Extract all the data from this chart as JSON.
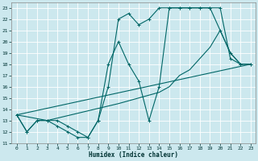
{
  "xlabel": "Humidex (Indice chaleur)",
  "background_color": "#cce8ee",
  "grid_color": "#ffffff",
  "line_color": "#006666",
  "xlim": [
    -0.5,
    23.5
  ],
  "ylim": [
    11,
    23.5
  ],
  "yticks": [
    11,
    12,
    13,
    14,
    15,
    16,
    17,
    18,
    19,
    20,
    21,
    22,
    23
  ],
  "xticks": [
    0,
    1,
    2,
    3,
    4,
    5,
    6,
    7,
    8,
    9,
    10,
    11,
    12,
    13,
    14,
    15,
    16,
    17,
    18,
    19,
    20,
    21,
    22,
    23
  ],
  "series": [
    {
      "x": [
        0,
        1,
        2,
        3,
        4,
        5,
        6,
        7,
        8,
        9,
        10,
        11,
        12,
        13,
        14,
        15,
        16,
        17,
        18,
        19,
        20,
        21,
        22,
        23
      ],
      "y": [
        13.5,
        12.0,
        13.0,
        13.0,
        13.0,
        12.5,
        12.0,
        11.5,
        13.0,
        16.0,
        22.0,
        22.5,
        21.5,
        22.0,
        23.0,
        23.0,
        23.0,
        23.0,
        23.0,
        23.0,
        23.0,
        18.5,
        18.0,
        18.0
      ],
      "marker": "+"
    },
    {
      "x": [
        0,
        1,
        2,
        3,
        4,
        5,
        6,
        7,
        8,
        9,
        10,
        11,
        12,
        13,
        14,
        15,
        16,
        17,
        18,
        19,
        20,
        21,
        22,
        23
      ],
      "y": [
        13.5,
        12.0,
        13.0,
        13.0,
        12.5,
        12.0,
        11.5,
        11.5,
        13.0,
        18.0,
        20.0,
        18.0,
        16.5,
        13.0,
        16.0,
        23.0,
        23.0,
        23.0,
        23.0,
        23.0,
        21.0,
        19.0,
        18.0,
        18.0
      ],
      "marker": "+"
    },
    {
      "x": [
        0,
        23
      ],
      "y": [
        13.5,
        18.0
      ],
      "marker": null
    },
    {
      "x": [
        0,
        3,
        10,
        14,
        15,
        16,
        17,
        18,
        19,
        20,
        21,
        22,
        23
      ],
      "y": [
        13.5,
        13.0,
        14.5,
        15.5,
        16.0,
        17.0,
        17.5,
        18.5,
        19.5,
        21.0,
        19.0,
        18.0,
        18.0
      ],
      "marker": null
    }
  ]
}
